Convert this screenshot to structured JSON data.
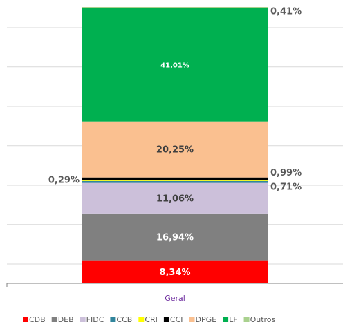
{
  "chart_data": {
    "type": "stacked_bar",
    "categories": [
      "Geral"
    ],
    "series": [
      {
        "name": "CDB",
        "color": "#ff0000",
        "values": [
          8.34
        ],
        "value_labels": [
          "8,34%"
        ]
      },
      {
        "name": "DEB",
        "color": "#808080",
        "values": [
          16.94
        ],
        "value_labels": [
          "16,94%"
        ]
      },
      {
        "name": "FIDC",
        "color": "#ccc0da",
        "values": [
          11.06
        ],
        "value_labels": [
          "11,06%"
        ]
      },
      {
        "name": "CCB",
        "color": "#31859c",
        "values": [
          0.71
        ],
        "value_labels": [
          "0,71%"
        ]
      },
      {
        "name": "CRI",
        "color": "#ffff00",
        "values": [
          0.29
        ],
        "value_labels": [
          "0,29%"
        ]
      },
      {
        "name": "CCI",
        "color": "#000000",
        "values": [
          0.99
        ],
        "value_labels": [
          "0,99%"
        ]
      },
      {
        "name": "DPGE",
        "color": "#fac090",
        "values": [
          20.25
        ],
        "value_labels": [
          "20,25%"
        ]
      },
      {
        "name": "LF",
        "color": "#00b050",
        "values": [
          41.01
        ],
        "value_labels": [
          "41,01%"
        ]
      },
      {
        "name": "Outros",
        "color": "#a9d18e",
        "values": [
          0.41
        ],
        "value_labels": [
          "0,41%"
        ]
      }
    ],
    "ylim": [
      0,
      100
    ],
    "yticks": [
      7,
      21.3,
      35.5,
      49.8,
      64,
      78.3,
      92.5
    ],
    "grid": true,
    "legend": "bottom"
  }
}
